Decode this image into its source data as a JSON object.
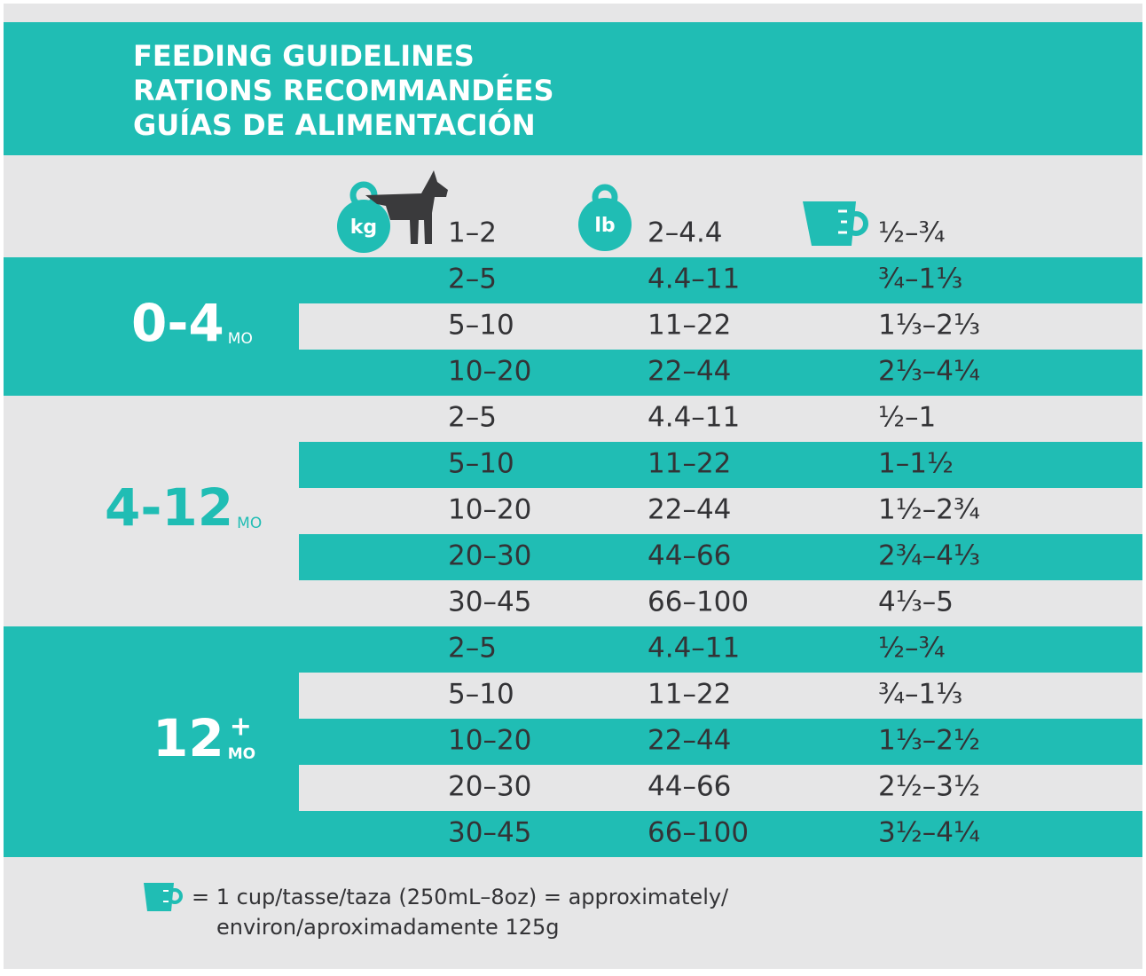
{
  "header": {
    "title_lines": [
      "FEEDING GUIDELINES",
      "RATIONS RECOMMANDÉES",
      "GUÍAS DE ALIMENTACIÓN"
    ]
  },
  "icons": {
    "kg": "kg",
    "lb": "lb"
  },
  "table": {
    "groups": [
      {
        "label": "0-4",
        "unit": "MO",
        "rows": [
          [
            "1–2",
            "2–4.4",
            "½–¾"
          ],
          [
            "2–5",
            "4.4–11",
            "¾–1⅓"
          ],
          [
            "5–10",
            "11–22",
            "1⅓–2⅓"
          ],
          [
            "10–20",
            "22–44",
            "2⅓–4¼"
          ]
        ]
      },
      {
        "label": "4-12",
        "unit": "MO",
        "rows": [
          [
            "2–5",
            "4.4–11",
            "½–1"
          ],
          [
            "5–10",
            "11–22",
            "1–1½"
          ],
          [
            "10–20",
            "22–44",
            "1½–2¾"
          ],
          [
            "20–30",
            "44–66",
            "2¾–4⅓"
          ],
          [
            "30–45",
            "66–100",
            "4⅓–5"
          ]
        ]
      },
      {
        "label": "12",
        "sup": "+",
        "unit": "MO",
        "rows": [
          [
            "2–5",
            "4.4–11",
            "½–¾"
          ],
          [
            "5–10",
            "11–22",
            "¾–1⅓"
          ],
          [
            "10–20",
            "22–44",
            "1⅓–2½"
          ],
          [
            "20–30",
            "44–66",
            "2½–3½"
          ],
          [
            "30–45",
            "66–100",
            "3½–4¼"
          ]
        ]
      }
    ]
  },
  "footer": {
    "lines": [
      "= 1 cup/tasse/taza (250mL–8oz) = approximately/",
      "environ/aproximadamente 125g"
    ]
  }
}
